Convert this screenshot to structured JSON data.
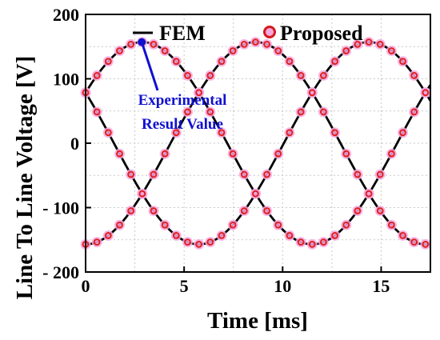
{
  "chart_data": {
    "type": "line",
    "xlabel": "Time [ms]",
    "ylabel": "Line To Line Voltage [V]",
    "xlim": [
      0,
      17.5
    ],
    "ylim": [
      -200,
      200
    ],
    "xticks": [
      0,
      5,
      10,
      15
    ],
    "yticks": [
      200,
      100,
      0,
      -100,
      -200
    ],
    "ytick_labels": [
      "200",
      "100",
      "0",
      "- 100",
      "- 200"
    ],
    "grid": true,
    "legend_position": "top",
    "amplitude": 157,
    "period_ms": 17.25,
    "phase_shifts_ms": [
      0,
      5.75,
      11.5
    ],
    "series": [
      {
        "name": "FEM",
        "style": "line",
        "color": "#000000"
      },
      {
        "name": "Proposed",
        "style": "marker",
        "color": "#e02020",
        "halo": "#f4a8e0"
      }
    ],
    "marker_step_ms": 0.575,
    "annotation": {
      "lines": [
        "Experimental",
        "Result Value"
      ],
      "point": {
        "x": 2.85,
        "y": 157
      },
      "color": "#1010d0"
    }
  }
}
